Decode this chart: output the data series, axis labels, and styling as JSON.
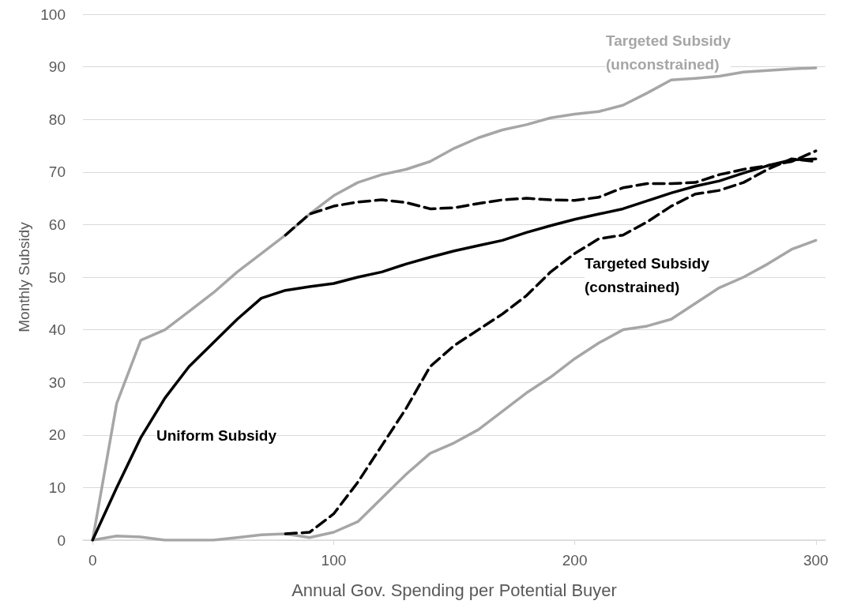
{
  "chart_data": {
    "type": "line",
    "xlabel": "Annual Gov. Spending per Potential Buyer",
    "ylabel": "Monthly Subsidy",
    "xlim": [
      -4,
      304
    ],
    "xticks": [
      0,
      100,
      200,
      300
    ],
    "ylim": [
      0,
      100
    ],
    "yticks": [
      0,
      10,
      20,
      30,
      40,
      50,
      60,
      70,
      80,
      90,
      100
    ],
    "grid": "y",
    "marker": "none",
    "x": [
      0,
      10,
      20,
      30,
      40,
      50,
      60,
      70,
      80,
      90,
      100,
      110,
      120,
      130,
      140,
      150,
      160,
      170,
      180,
      190,
      200,
      210,
      220,
      230,
      240,
      250,
      260,
      270,
      280,
      290,
      300
    ],
    "series": [
      {
        "color": "#a6a6a6",
        "line_style": "solid",
        "values": [
          0,
          26,
          38,
          40,
          43.5,
          47,
          51,
          54.5,
          58,
          62,
          65.5,
          68,
          69.5,
          70.5,
          72,
          74.5,
          76.5,
          78,
          79,
          80.3,
          81,
          81.5,
          82.7,
          85,
          87.5,
          87.8,
          88.2,
          89,
          89.3,
          89.6,
          89.8
        ]
      },
      {
        "color": "#a6a6a6",
        "line_style": "solid",
        "values": [
          0,
          0.8,
          0.6,
          0,
          0,
          0,
          0.5,
          1,
          1.2,
          0.5,
          1.5,
          3.5,
          8,
          12.5,
          16.5,
          18.5,
          21,
          24.5,
          28,
          31,
          34.5,
          37.5,
          40,
          40.7,
          42,
          45,
          48,
          50,
          52.5,
          55.3,
          57
        ]
      },
      {
        "color": "#000000",
        "line_style": "dashed",
        "values": [
          null,
          null,
          null,
          null,
          null,
          null,
          null,
          null,
          58,
          62,
          63.5,
          64.3,
          64.7,
          64.2,
          63,
          63.2,
          64,
          64.7,
          65,
          64.7,
          64.6,
          65.2,
          67,
          67.8,
          67.8,
          68,
          69.5,
          70.5,
          71.2,
          72,
          74
        ]
      },
      {
        "color": "#000000",
        "line_style": "dashed",
        "values": [
          null,
          null,
          null,
          null,
          null,
          null,
          null,
          null,
          1.2,
          1.5,
          5,
          11,
          18,
          25,
          33,
          37,
          40,
          43,
          46.5,
          51,
          54.5,
          57.3,
          58,
          60.5,
          63.5,
          65.8,
          66.5,
          68,
          70.5,
          72.5,
          72
        ]
      },
      {
        "color": "#000000",
        "line_style": "solid",
        "values": [
          0,
          10,
          19.5,
          27,
          33,
          37.5,
          42,
          46,
          47.5,
          48.2,
          48.8,
          50,
          51,
          52.5,
          53.8,
          55,
          56,
          57,
          58.5,
          59.8,
          61,
          62,
          63,
          64.5,
          66,
          67.3,
          68.3,
          69.8,
          71.2,
          72.3,
          72.5
        ]
      }
    ],
    "annotations": [
      "Targeted Subsidy\n(unconstrained)",
      "Targeted Subsidy\n(constrained)",
      "Uniform Subsidy"
    ]
  }
}
